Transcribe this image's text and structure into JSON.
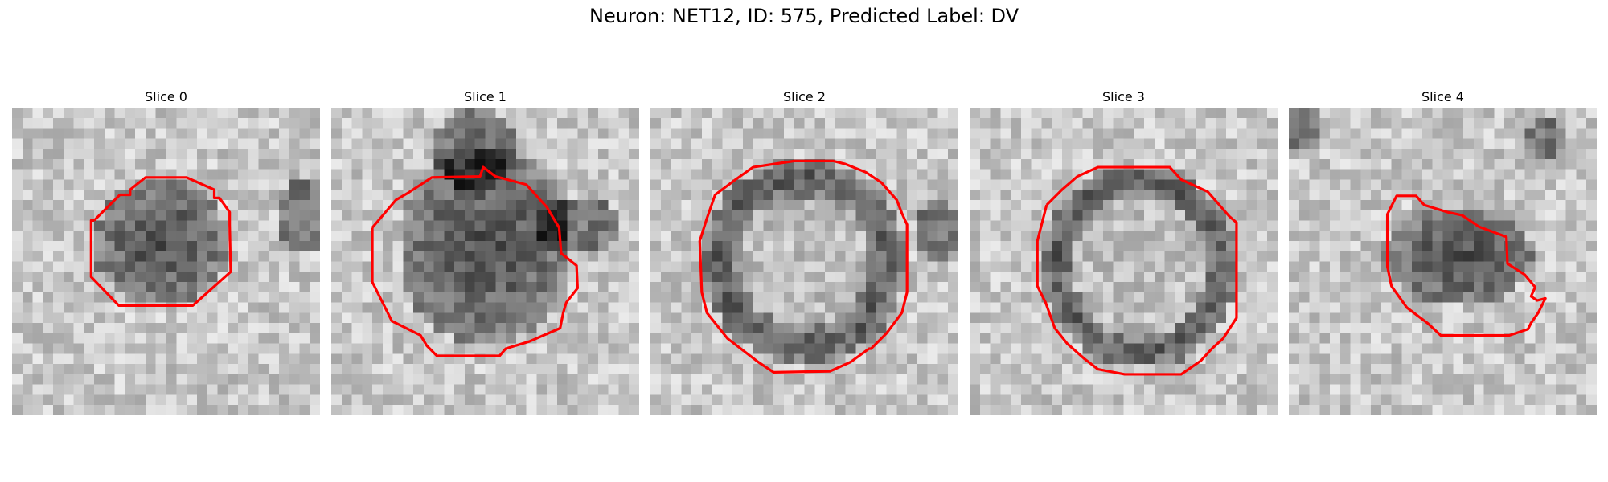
{
  "figure": {
    "title": "Neuron: NET12, ID: 575, Predicted Label: DV",
    "contour_color": "#ff0000",
    "panels": [
      {
        "title": "Slice 0"
      },
      {
        "title": "Slice 1"
      },
      {
        "title": "Slice 2"
      },
      {
        "title": "Slice 3"
      },
      {
        "title": "Slice 4"
      }
    ]
  }
}
